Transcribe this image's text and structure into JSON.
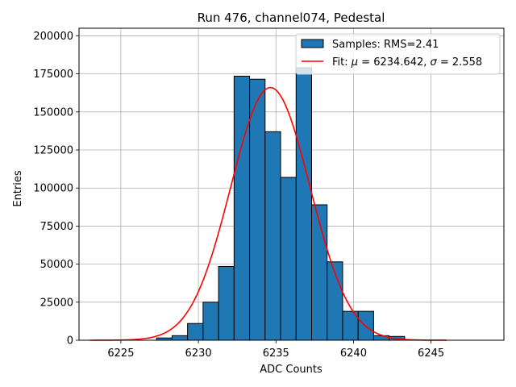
{
  "chart_data": {
    "type": "bar",
    "title": "Run 476, channel074, Pedestal",
    "xlabel": "ADC Counts",
    "ylabel": "Entries",
    "xlim": [
      6222.3,
      6249.7
    ],
    "ylim": [
      0,
      205000
    ],
    "grid": true,
    "legend_position": "top-right",
    "x_ticks": [
      6225,
      6230,
      6235,
      6240,
      6245
    ],
    "y_ticks": [
      0,
      25000,
      50000,
      75000,
      100000,
      125000,
      150000,
      175000,
      200000
    ],
    "colors": {
      "bar_fill": "#1f77b4",
      "bar_edge": "#000000",
      "fit_line": "#ff0000",
      "grid": "#b0b0b0"
    },
    "histogram": {
      "bin_edges": [
        6222.3,
        6223.3,
        6224.3,
        6225.3,
        6226.3,
        6227.3,
        6228.3,
        6229.3,
        6230.3,
        6231.3,
        6232.3,
        6233.3,
        6234.3,
        6235.3,
        6236.3,
        6237.3,
        6238.3,
        6239.3,
        6240.3,
        6241.3,
        6242.3,
        6243.3,
        6244.3,
        6245.3,
        6246.3,
        6247.3,
        6248.3
      ],
      "counts": [
        0,
        0,
        0,
        0,
        0,
        1500,
        3000,
        11000,
        25000,
        48500,
        173500,
        171500,
        137000,
        107000,
        179000,
        89000,
        51500,
        19000,
        19000,
        3000,
        2500,
        0,
        0,
        0,
        0,
        0
      ]
    },
    "fit": {
      "mu": 6234.642,
      "sigma": 2.558,
      "amplitude": 166000,
      "x_range": [
        6223.0,
        6246.0
      ]
    },
    "legend": {
      "samples_label": "Samples: RMS=2.41",
      "fit_label_prefix": "Fit: ",
      "fit_mu_symbol": "μ",
      "fit_mu_text": " = 6234.642, ",
      "fit_sigma_symbol": "σ",
      "fit_sigma_text": " = 2.558"
    }
  }
}
